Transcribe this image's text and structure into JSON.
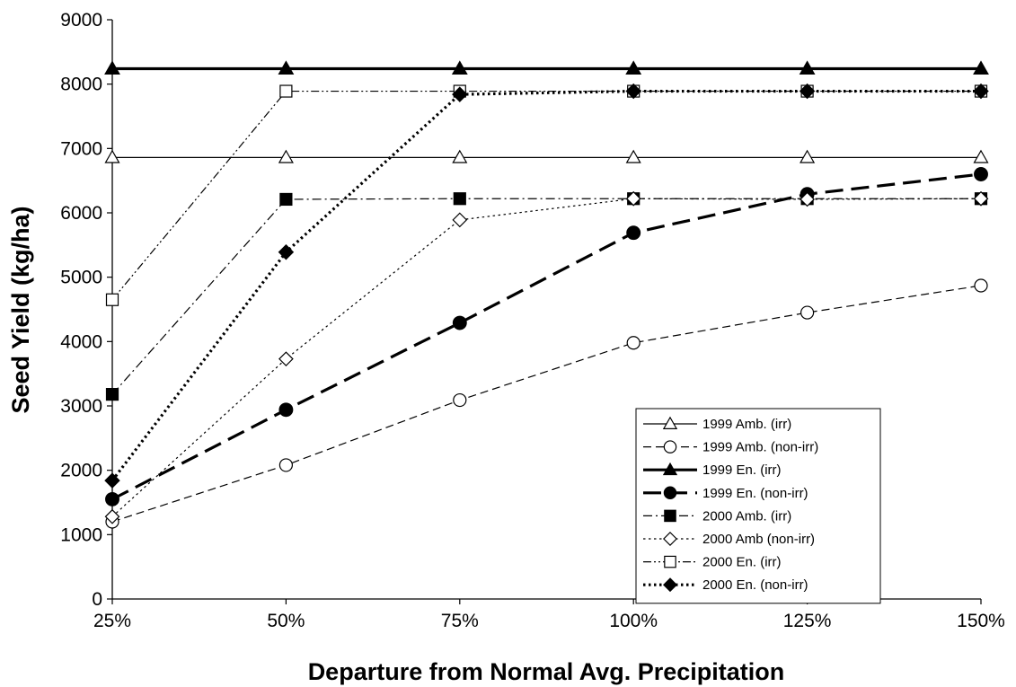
{
  "chart_data": {
    "type": "line",
    "title": "",
    "xlabel": "Departure from Normal Avg. Precipitation",
    "ylabel": "Seed Yield (kg/ha)",
    "x": [
      "25%",
      "50%",
      "75%",
      "100%",
      "125%",
      "150%"
    ],
    "ylim": [
      0,
      9000
    ],
    "yticks": [
      "0",
      "1000",
      "2000",
      "3000",
      "4000",
      "5000",
      "6000",
      "7000",
      "8000",
      "9000"
    ],
    "grid": false,
    "legend_position": "bottom-right",
    "series": [
      {
        "name": "1999 Amb. (irr)",
        "values": [
          6860,
          6860,
          6860,
          6860,
          6860,
          6860
        ],
        "marker": "triangle",
        "fill": "open",
        "dash": "solid",
        "weight": "thin"
      },
      {
        "name": "1999 Amb. (non-irr)",
        "values": [
          1200,
          2080,
          3090,
          3980,
          4450,
          4870
        ],
        "marker": "circle",
        "fill": "open",
        "dash": "dash",
        "weight": "thin"
      },
      {
        "name": "1999 En. (irr)",
        "values": [
          8240,
          8240,
          8240,
          8240,
          8240,
          8240
        ],
        "marker": "triangle",
        "fill": "filled",
        "dash": "solid",
        "weight": "thick"
      },
      {
        "name": "1999 En. (non-irr)",
        "values": [
          1550,
          2940,
          4290,
          5690,
          6290,
          6600
        ],
        "marker": "circle",
        "fill": "filled",
        "dash": "longdash",
        "weight": "thick"
      },
      {
        "name": "2000 Amb. (irr)",
        "values": [
          3180,
          6210,
          6220,
          6220,
          6220,
          6220
        ],
        "marker": "square",
        "fill": "filled",
        "dash": "dashdot",
        "weight": "thin"
      },
      {
        "name": "2000 Amb (non-irr)",
        "values": [
          1280,
          3730,
          5890,
          6220,
          6210,
          6220
        ],
        "marker": "diamond",
        "fill": "open",
        "dash": "dot",
        "weight": "thin"
      },
      {
        "name": "2000 En. (irr)",
        "values": [
          4650,
          7890,
          7890,
          7890,
          7890,
          7890
        ],
        "marker": "square",
        "fill": "open",
        "dash": "dashdotdot",
        "weight": "thin"
      },
      {
        "name": "2000 En. (non-irr)",
        "values": [
          1840,
          5390,
          7840,
          7890,
          7890,
          7890
        ],
        "marker": "diamond",
        "fill": "filled",
        "dash": "dot",
        "weight": "thick"
      }
    ]
  }
}
